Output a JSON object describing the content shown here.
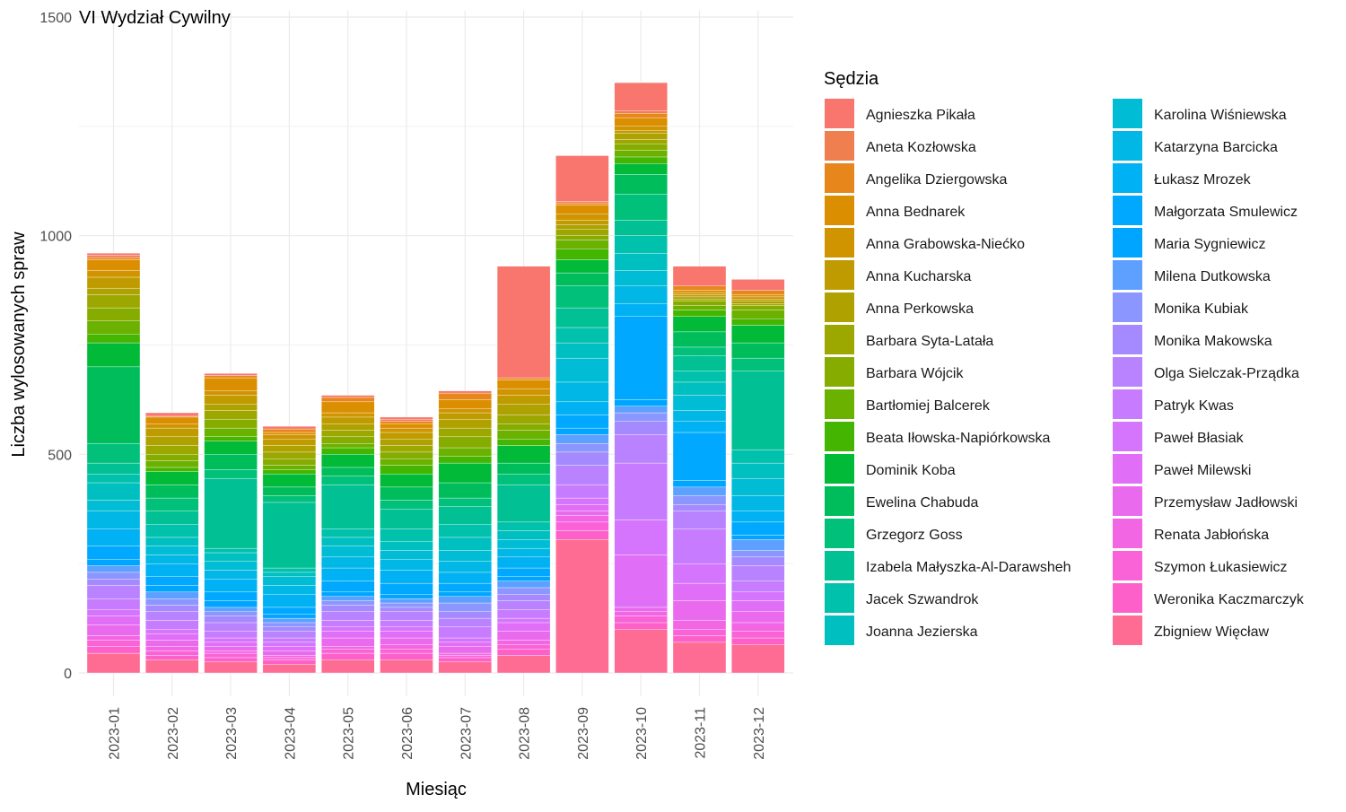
{
  "chart_data": {
    "type": "bar",
    "stacked": true,
    "title": "VI Wydział Cywilny",
    "xlabel": "Miesiąc",
    "ylabel": "Liczba wylosowanych spraw",
    "ylim": [
      0,
      1500
    ],
    "yticks": [
      0,
      500,
      1000,
      1500
    ],
    "grid": true,
    "legend_title": "Sędzia",
    "legend_position": "right",
    "categories": [
      "2023-01",
      "2023-02",
      "2023-03",
      "2023-04",
      "2023-05",
      "2023-06",
      "2023-07",
      "2023-08",
      "2023-09",
      "2023-10",
      "2023-11",
      "2023-12"
    ],
    "series": [
      {
        "name": "Agnieszka Pikała",
        "color": "#F8766D",
        "values": [
          5,
          8,
          5,
          6,
          5,
          5,
          5,
          255,
          105,
          65,
          45,
          25
        ]
      },
      {
        "name": "Aneta Kozłowska",
        "color": "#F07F50",
        "values": [
          5,
          0,
          0,
          0,
          0,
          5,
          0,
          0,
          3,
          5,
          0,
          0
        ]
      },
      {
        "name": "Angelika Dziergowska",
        "color": "#E7861B",
        "values": [
          5,
          2,
          5,
          8,
          10,
          5,
          15,
          5,
          5,
          10,
          10,
          10
        ]
      },
      {
        "name": "Anna Bednarek",
        "color": "#DB8E00",
        "values": [
          25,
          15,
          30,
          5,
          25,
          10,
          20,
          20,
          20,
          20,
          5,
          5
        ]
      },
      {
        "name": "Anna Grabowska-Niećko",
        "color": "#CF9400",
        "values": [
          15,
          10,
          10,
          10,
          10,
          10,
          10,
          15,
          15,
          10,
          5,
          5
        ]
      },
      {
        "name": "Anna Kucharska",
        "color": "#C09B00",
        "values": [
          25,
          20,
          20,
          15,
          15,
          15,
          15,
          20,
          10,
          5,
          5,
          5
        ]
      },
      {
        "name": "Anna Perkowska",
        "color": "#AFA100",
        "values": [
          15,
          20,
          15,
          15,
          15,
          15,
          20,
          25,
          10,
          15,
          5,
          5
        ]
      },
      {
        "name": "Barbara Syta-Latała",
        "color": "#9CA700",
        "values": [
          30,
          20,
          20,
          15,
          15,
          15,
          20,
          20,
          15,
          10,
          5,
          5
        ]
      },
      {
        "name": "Barbara Wójcik",
        "color": "#86AC00",
        "values": [
          30,
          15,
          20,
          15,
          15,
          15,
          25,
          15,
          10,
          15,
          10,
          10
        ]
      },
      {
        "name": "Bartłomiej Balcerek",
        "color": "#6BB100",
        "values": [
          30,
          15,
          20,
          10,
          10,
          15,
          20,
          20,
          20,
          15,
          10,
          20
        ]
      },
      {
        "name": "Beata Iłowska-Napiórkowska",
        "color": "#44B500",
        "values": [
          20,
          10,
          10,
          10,
          15,
          20,
          15,
          15,
          25,
          15,
          15,
          15
        ]
      },
      {
        "name": "Dominik Koba",
        "color": "#00BA38",
        "values": [
          55,
          30,
          30,
          30,
          30,
          30,
          45,
          40,
          30,
          25,
          35,
          40
        ]
      },
      {
        "name": "Ewelina Chabuda",
        "color": "#00BD5C",
        "values": [
          175,
          30,
          35,
          20,
          20,
          30,
          35,
          25,
          30,
          45,
          35,
          35
        ]
      },
      {
        "name": "Grzegorz Goss",
        "color": "#00C07A",
        "values": [
          45,
          30,
          20,
          15,
          20,
          20,
          20,
          25,
          50,
          60,
          20,
          30
        ]
      },
      {
        "name": "Izabela Małyszka-Al-Darawsheh",
        "color": "#00C094",
        "values": [
          25,
          30,
          160,
          150,
          100,
          45,
          40,
          85,
          45,
          35,
          35,
          180
        ]
      },
      {
        "name": "Jacek Szwandrok",
        "color": "#00C1AB",
        "values": [
          20,
          30,
          10,
          10,
          20,
          30,
          30,
          20,
          35,
          40,
          25,
          30
        ]
      },
      {
        "name": "Joanna Jezierska",
        "color": "#00BFC0",
        "values": [
          40,
          20,
          20,
          10,
          20,
          20,
          30,
          20,
          35,
          40,
          30,
          35
        ]
      },
      {
        "name": "Karolina Wiśniewska",
        "color": "#00BCD4",
        "values": [
          25,
          20,
          20,
          20,
          25,
          20,
          25,
          20,
          55,
          35,
          35,
          40
        ]
      },
      {
        "name": "Katarzyna Barcicka",
        "color": "#00B7E5",
        "values": [
          40,
          20,
          20,
          20,
          25,
          25,
          25,
          20,
          45,
          40,
          25,
          35
        ]
      },
      {
        "name": "Łukasz Mrozek",
        "color": "#00B1F3",
        "values": [
          40,
          30,
          30,
          30,
          30,
          30,
          25,
          25,
          30,
          30,
          25,
          25
        ]
      },
      {
        "name": "Małgorzata Smulewicz",
        "color": "#00A9FF",
        "values": [
          30,
          20,
          20,
          15,
          25,
          25,
          20,
          20,
          30,
          190,
          110,
          30
        ]
      },
      {
        "name": "Maria Sygniewicz",
        "color": "#00A5FF",
        "values": [
          15,
          15,
          15,
          10,
          10,
          10,
          10,
          10,
          15,
          15,
          15,
          10
        ]
      },
      {
        "name": "Milena Dutkowska",
        "color": "#5EA0FF",
        "values": [
          15,
          15,
          10,
          10,
          10,
          10,
          15,
          15,
          20,
          15,
          20,
          25
        ]
      },
      {
        "name": "Monika Kubiak",
        "color": "#8B96FF",
        "values": [
          15,
          15,
          10,
          10,
          10,
          10,
          20,
          15,
          20,
          20,
          20,
          15
        ]
      },
      {
        "name": "Monika Makowska",
        "color": "#A58AFF",
        "values": [
          15,
          15,
          15,
          10,
          15,
          10,
          15,
          15,
          30,
          30,
          15,
          20
        ]
      },
      {
        "name": "Olga Sielczak-Prządka",
        "color": "#B983FF",
        "values": [
          30,
          20,
          20,
          15,
          20,
          20,
          20,
          20,
          45,
          65,
          40,
          35
        ]
      },
      {
        "name": "Patryk Kwas",
        "color": "#C77CFF",
        "values": [
          25,
          20,
          15,
          10,
          15,
          15,
          25,
          20,
          30,
          130,
          80,
          25
        ]
      },
      {
        "name": "Paweł Błasiak",
        "color": "#D575FE",
        "values": [
          15,
          10,
          10,
          10,
          10,
          10,
          10,
          10,
          15,
          80,
          45,
          20
        ]
      },
      {
        "name": "Paweł Milewski",
        "color": "#E06EF7",
        "values": [
          20,
          15,
          10,
          10,
          15,
          15,
          10,
          20,
          15,
          120,
          40,
          25
        ]
      },
      {
        "name": "Przemysław Jadłowski",
        "color": "#EA6AEE",
        "values": [
          25,
          15,
          10,
          10,
          20,
          15,
          15,
          20,
          10,
          10,
          45,
          25
        ]
      },
      {
        "name": "Renata Jabłońska",
        "color": "#F366E3",
        "values": [
          10,
          10,
          5,
          5,
          5,
          10,
          5,
          10,
          15,
          10,
          20,
          20
        ]
      },
      {
        "name": "Szymon Łukasiewicz",
        "color": "#F963D7",
        "values": [
          15,
          10,
          10,
          5,
          10,
          10,
          5,
          10,
          20,
          15,
          15,
          15
        ]
      },
      {
        "name": "Weronika Kaczmarczyk",
        "color": "#FD61C9",
        "values": [
          15,
          10,
          10,
          10,
          15,
          15,
          10,
          15,
          20,
          15,
          15,
          15
        ]
      },
      {
        "name": "Zbigniew Więcław",
        "color": "#FF6C93",
        "values": [
          45,
          30,
          25,
          20,
          30,
          30,
          25,
          40,
          305,
          100,
          70,
          65
        ]
      }
    ]
  }
}
